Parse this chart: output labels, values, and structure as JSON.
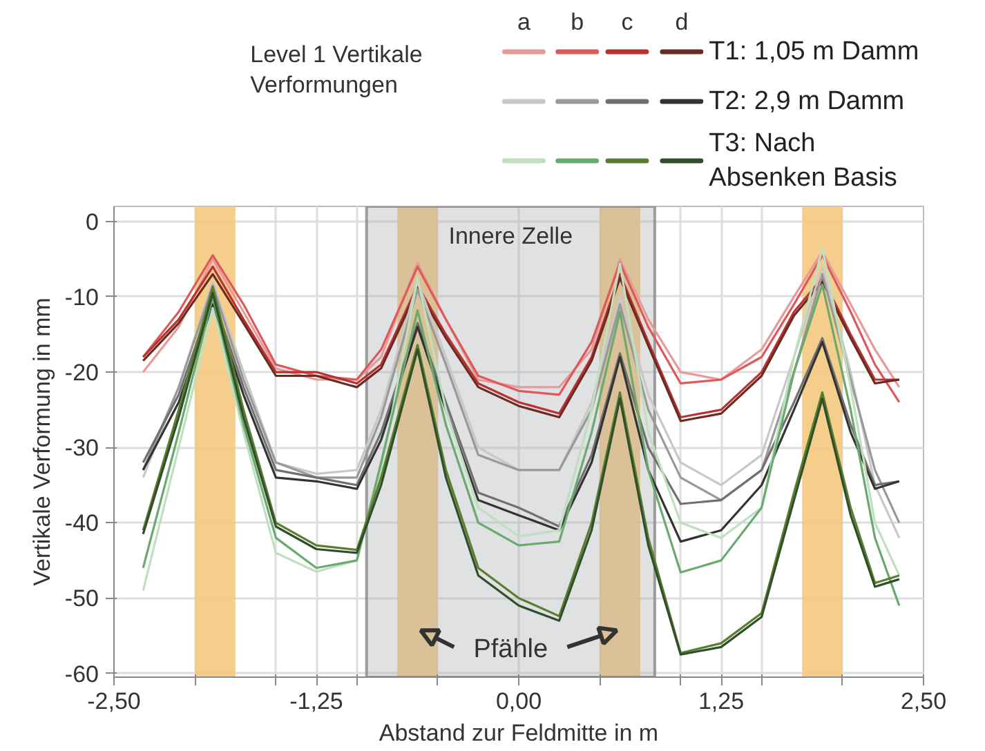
{
  "chart_data": {
    "type": "line",
    "title": "Level 1 Vertikale Verformungen",
    "xlabel": "Abstand zur Feldmitte in m",
    "ylabel": "Vertikale Verformung in mm",
    "x": [
      -2.32,
      -2.1,
      -1.89,
      -1.7,
      -1.5,
      -1.25,
      -1.0,
      -0.85,
      -0.625,
      -0.45,
      -0.25,
      0,
      0.25,
      0.45,
      0.625,
      0.8,
      1.0,
      1.25,
      1.5,
      1.7,
      1.875,
      2.05,
      2.2,
      2.35
    ],
    "series": [
      {
        "color": "#e89a9a",
        "values": [
          -20,
          -14,
          -5,
          -12,
          -19.5,
          -21,
          -21,
          -18,
          -5.5,
          -13,
          -21,
          -22,
          -22,
          -17,
          -5,
          -13,
          -20,
          -21,
          -17,
          -10,
          -4,
          -11,
          -17,
          -22
        ]
      },
      {
        "color": "#de5a5a",
        "values": [
          -18,
          -12,
          -4.5,
          -11,
          -19,
          -20.5,
          -21,
          -17,
          -6,
          -13,
          -20.5,
          -22.5,
          -23,
          -16,
          -5.5,
          -14,
          -21.5,
          -21,
          -18,
          -11,
          -4.5,
          -12,
          -19,
          -24
        ]
      },
      {
        "color": "#b83232",
        "values": [
          -18,
          -13,
          -6,
          -13,
          -20,
          -20,
          -21.5,
          -19,
          -8.5,
          -15,
          -21.5,
          -24,
          -25.5,
          -18,
          -7,
          -16,
          -26,
          -25,
          -20,
          -12,
          -7.5,
          -15,
          -21,
          -21
        ]
      },
      {
        "color": "#6b2a22",
        "values": [
          -18.5,
          -13.5,
          -7,
          -13.5,
          -20.5,
          -20.5,
          -22,
          -19.5,
          -9,
          -15.5,
          -22,
          -24.5,
          -26,
          -18.5,
          -7.5,
          -16.5,
          -26.5,
          -25.5,
          -20.5,
          -12.5,
          -8,
          -15.5,
          -21.5,
          -21
        ]
      },
      {
        "color": "#c8c8c8",
        "values": [
          -34,
          -22,
          -8,
          -20,
          -32,
          -33.5,
          -33,
          -25,
          -8,
          -18,
          -30,
          -33,
          -33,
          -24,
          -10,
          -23,
          -32,
          -35,
          -31,
          -18,
          -6,
          -20,
          -35,
          -42
        ]
      },
      {
        "color": "#999999",
        "values": [
          -33,
          -22,
          -8.5,
          -21,
          -32,
          -34,
          -34,
          -26,
          -9,
          -19,
          -31,
          -33,
          -33,
          -25,
          -11,
          -25,
          -34,
          -37,
          -33,
          -20,
          -7,
          -21,
          -33,
          -40
        ]
      },
      {
        "color": "#707070",
        "values": [
          -32,
          -23,
          -10,
          -22,
          -33,
          -34,
          -35,
          -28,
          -13.5,
          -24,
          -36,
          -38,
          -40.5,
          -31,
          -17.5,
          -30,
          -37.5,
          -37,
          -33,
          -24,
          -15.5,
          -27,
          -35,
          -34.5
        ]
      },
      {
        "color": "#333333",
        "values": [
          -33,
          -24,
          -11,
          -23,
          -34,
          -34.5,
          -35.5,
          -29,
          -14,
          -25,
          -37,
          -39,
          -41,
          -32,
          -18,
          -33,
          -42.5,
          -41,
          -35,
          -25,
          -16,
          -28,
          -35.5,
          -34.5
        ]
      },
      {
        "color": "#bfe0c0",
        "values": [
          -49,
          -30,
          -11.5,
          -28,
          -44,
          -46.5,
          -45,
          -33,
          -7.5,
          -25,
          -38,
          -41.8,
          -41,
          -25,
          -5.6,
          -28,
          -40,
          -42,
          -38,
          -18,
          -3.6,
          -22,
          -40,
          -47
        ]
      },
      {
        "color": "#6aaa6e",
        "values": [
          -46,
          -28,
          -10,
          -27,
          -42,
          -46,
          -45,
          -32,
          -11.8,
          -27,
          -40,
          -43,
          -42.5,
          -28,
          -12,
          -33,
          -46.6,
          -45,
          -38,
          -20,
          -8.4,
          -25,
          -42,
          -51
        ]
      },
      {
        "color": "#5a7d30",
        "values": [
          -41,
          -25,
          -8.7,
          -25,
          -40,
          -43,
          -43.6,
          -34,
          -16.4,
          -33,
          -46,
          -50,
          -52.4,
          -40,
          -22.7,
          -42,
          -57.3,
          -56,
          -52,
          -36,
          -22.7,
          -38,
          -48,
          -47
        ]
      },
      {
        "color": "#2f4f2a",
        "values": [
          -41.5,
          -26,
          -9.5,
          -26,
          -40.5,
          -43.5,
          -44,
          -35,
          -17,
          -34,
          -47,
          -51,
          -53,
          -41,
          -23.5,
          -43,
          -57.5,
          -56.5,
          -52.5,
          -37,
          -23.5,
          -39,
          -48.5,
          -47.5
        ]
      }
    ],
    "xlim": [
      -2.5,
      2.5
    ],
    "ylim": [
      -60.5,
      2
    ],
    "xticks": [
      {
        "value": -2.5,
        "label": "-2,50"
      },
      {
        "value": -2.0,
        "label": null
      },
      {
        "value": -1.5,
        "label": null
      },
      {
        "value": -1.25,
        "label": "-1,25"
      },
      {
        "value": -1.0,
        "label": null
      },
      {
        "value": -0.5,
        "label": null
      },
      {
        "value": 0,
        "label": "0,00"
      },
      {
        "value": 0.5,
        "label": null
      },
      {
        "value": 1.0,
        "label": null
      },
      {
        "value": 1.25,
        "label": "1,25"
      },
      {
        "value": 1.5,
        "label": null
      },
      {
        "value": 2.0,
        "label": null
      },
      {
        "value": 2.5,
        "label": "2,50"
      }
    ],
    "yticks": [
      0,
      -10,
      -20,
      -30,
      -40,
      -50,
      -60
    ],
    "bands": [
      {
        "axis": "x",
        "from": -2.0,
        "to": -1.75,
        "color": "#f5c97e"
      },
      {
        "axis": "x",
        "from": -0.75,
        "to": -0.5,
        "color": "#f5c97e"
      },
      {
        "axis": "x",
        "from": 0.5,
        "to": 0.75,
        "color": "#f5c97e"
      },
      {
        "axis": "x",
        "from": 1.75,
        "to": 2.0,
        "color": "#f5c97e"
      },
      {
        "axis": "x",
        "from": -0.94,
        "to": 0.84,
        "label": "Innere Zelle",
        "color": "#a6aaae"
      }
    ],
    "annotations": [
      "a",
      "b",
      "c",
      "d",
      "T1: 1,05 m  Damm",
      "T2: 2,9 m Damm",
      "T3: Nach Absenken Basis",
      "Pfähle"
    ],
    "grid": true,
    "legend": "top",
    "line_style": "solid"
  }
}
